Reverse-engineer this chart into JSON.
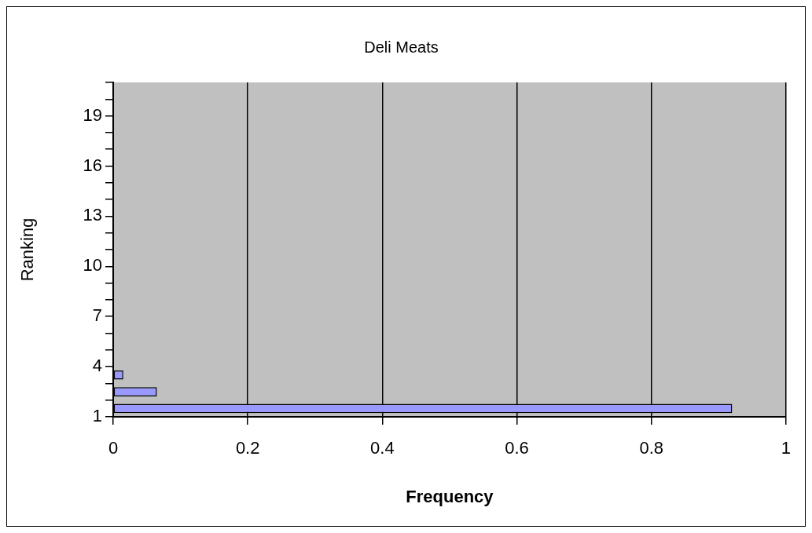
{
  "chart_data": {
    "type": "bar",
    "orientation": "horizontal",
    "title": "Deli Meats",
    "xlabel": "Frequency",
    "ylabel": "Ranking",
    "categories": [
      null,
      "19",
      null,
      null,
      "16",
      null,
      null,
      "13",
      null,
      null,
      "10",
      null,
      null,
      "7",
      null,
      null,
      "4",
      null,
      null,
      "1"
    ],
    "values": [
      0,
      0,
      0,
      0,
      0,
      0,
      0,
      0,
      0,
      0,
      0,
      0,
      0,
      0,
      0,
      0,
      0,
      0.015,
      0.065,
      0.92
    ],
    "color": "#9999ff",
    "xlim": [
      0,
      1
    ],
    "xticks": [
      0,
      0.2,
      0.4,
      0.6,
      0.8,
      1
    ],
    "grid": "x",
    "legend": false
  }
}
